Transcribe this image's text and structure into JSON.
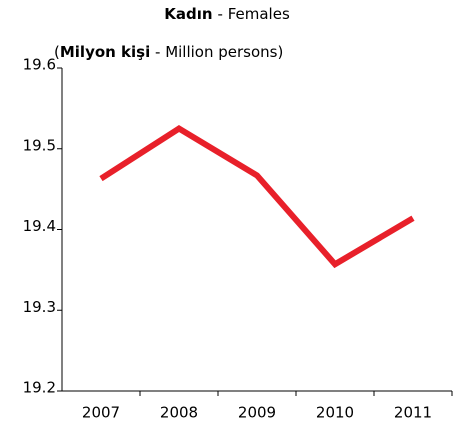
{
  "chart_data": {
    "type": "line",
    "title": [
      "Kadın",
      "- Females"
    ],
    "y_label": [
      "(",
      "Milyon kişi",
      " - Million persons)"
    ],
    "categories": [
      "2007",
      "2008",
      "2009",
      "2010",
      "2011"
    ],
    "series": [
      {
        "name": "Kadın",
        "color": "#e8202a",
        "values": [
          19.463,
          19.525,
          19.467,
          19.357,
          19.414
        ]
      }
    ],
    "ylim": [
      19.2,
      19.6
    ],
    "yticks": [
      19.2,
      19.3,
      19.4,
      19.5,
      19.6
    ],
    "grid": false,
    "legend": false
  }
}
